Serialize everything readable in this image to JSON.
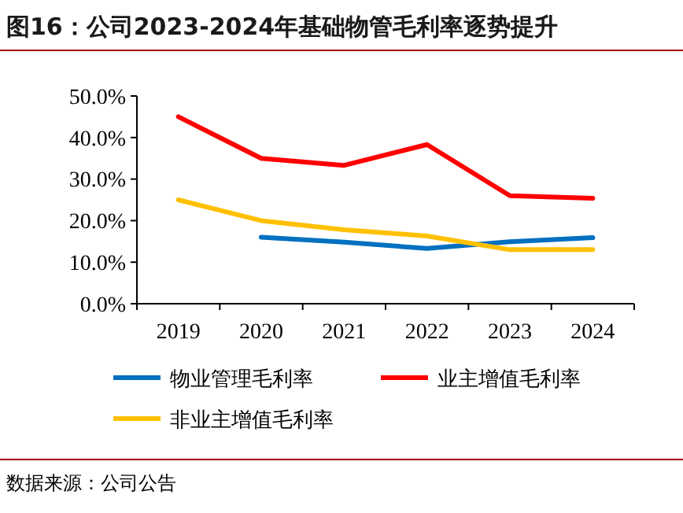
{
  "chart_data": {
    "type": "line",
    "title": "图16：公司2023-2024年基础物管毛利率逐势提升",
    "categories": [
      "2019",
      "2020",
      "2021",
      "2022",
      "2023",
      "2024"
    ],
    "series": [
      {
        "name": "物业管理毛利率",
        "color": "#0070c0",
        "values": [
          null,
          16,
          14.8,
          13.3,
          14.9,
          15.9
        ]
      },
      {
        "name": "业主增值毛利率",
        "color": "#ff0000",
        "values": [
          45,
          35,
          33.3,
          38.3,
          26,
          25.4
        ]
      },
      {
        "name": "非业主增值毛利率",
        "color": "#ffc000",
        "values": [
          25,
          20,
          17.8,
          16.3,
          13,
          13
        ]
      }
    ],
    "ylim": [
      0,
      50
    ],
    "yticks": [
      {
        "value": 0,
        "label": "0.0%"
      },
      {
        "value": 10,
        "label": "10.0%"
      },
      {
        "value": 20,
        "label": "20.0%"
      },
      {
        "value": 30,
        "label": "30.0%"
      },
      {
        "value": 40,
        "label": "40.0%"
      },
      {
        "value": 50,
        "label": "50.0%"
      }
    ],
    "grid": false,
    "legend": "bottom",
    "marker": "none",
    "line_style": "solid",
    "annotations": [
      "数据来源：公司公告"
    ]
  }
}
